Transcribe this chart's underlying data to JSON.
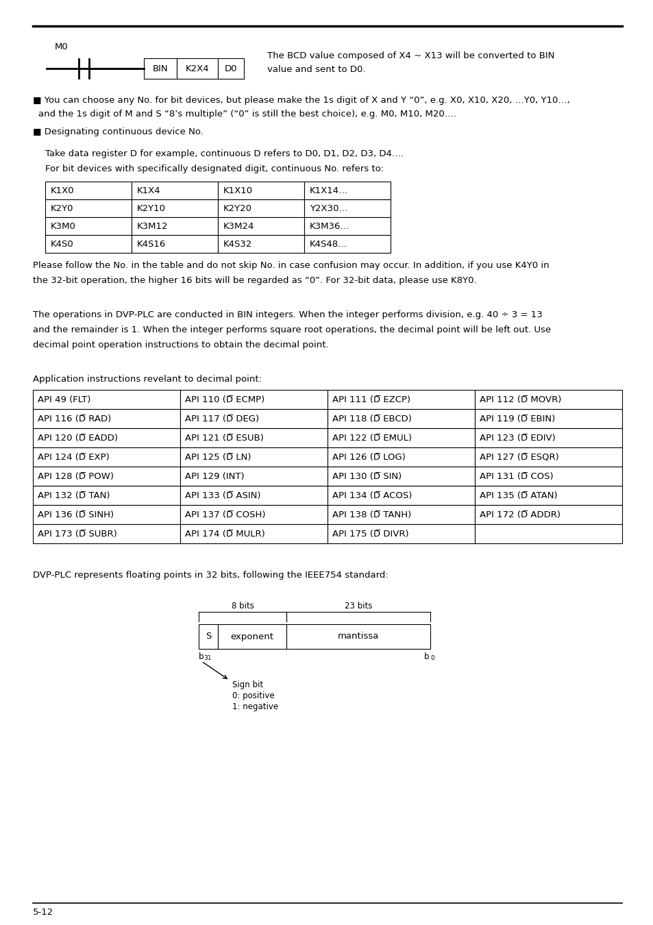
{
  "bg_color": "#ffffff",
  "page_label": "5-12",
  "ladder_m0_label": "M0",
  "ladder_desc1": "The BCD value composed of X4 ~ X13 will be converted to BIN",
  "ladder_desc2": "value and sent to D0.",
  "ladder_box_labels": [
    "BIN",
    "K2X4",
    "D0"
  ],
  "bullet1_line1": "■ You can choose any No. for bit devices, but please make the 1s digit of X and Y “0”, e.g. X0, X10, X20, …Y0, Y10…,",
  "bullet1_line2": "and the 1s digit of M and S “8’s multiple” (“0” is still the best choice), e.g. M0, M10, M20….",
  "bullet2": "■ Designating continuous device No.",
  "para1": "Take data register D for example, continuous D refers to D0, D1, D2, D3, D4….",
  "para2": "For bit devices with specifically designated digit, continuous No. refers to:",
  "table1": [
    [
      "K1X0",
      "K1X4",
      "K1X10",
      "K1X14…"
    ],
    [
      "K2Y0",
      "K2Y10",
      "K2Y20",
      "Y2X30…"
    ],
    [
      "K3M0",
      "K3M12",
      "K3M24",
      "K3M36…"
    ],
    [
      "K4S0",
      "K4S16",
      "K4S32",
      "K4S48…"
    ]
  ],
  "para3": "Please follow the No. in the table and do not skip No. in case confusion may occur. In addition, if you use K4Y0 in",
  "para4": "the 32-bit operation, the higher 16 bits will be regarded as “0”. For 32-bit data, please use K8Y0.",
  "para5": "The operations in DVP-PLC are conducted in BIN integers. When the integer performs division, e.g. 40 ÷ 3 = 13",
  "para6": "and the remainder is 1. When the integer performs square root operations, the decimal point will be left out. Use",
  "para7": "decimal point operation instructions to obtain the decimal point.",
  "app_label": "Application instructions revelant to decimal point:",
  "table2": [
    [
      "API 49 (FLT)",
      "API 110 (D̅ ECMP)",
      "API 111 (D̅ EZCP)",
      "API 112 (D̅ MOVR)"
    ],
    [
      "API 116 (D̅ RAD)",
      "API 117 (D̅ DEG)",
      "API 118 (D̅ EBCD)",
      "API 119 (D̅ EBIN)"
    ],
    [
      "API 120 (D̅ EADD)",
      "API 121 (D̅ ESUB)",
      "API 122 (D̅ EMUL)",
      "API 123 (D̅ EDIV)"
    ],
    [
      "API 124 (D̅ EXP)",
      "API 125 (D̅ LN)",
      "API 126 (D̅ LOG)",
      "API 127 (D̅ ESQR)"
    ],
    [
      "API 128 (D̅ POW)",
      "API 129 (INT)",
      "API 130 (D̅ SIN)",
      "API 131 (D̅ COS)"
    ],
    [
      "API 132 (D̅ TAN)",
      "API 133 (D̅ ASIN)",
      "API 134 (D̅ ACOS)",
      "API 135 (D̅ ATAN)"
    ],
    [
      "API 136 (D̅ SINH)",
      "API 137 (D̅ COSH)",
      "API 138 (D̅ TANH)",
      "API 172 (D̅ ADDR)"
    ],
    [
      "API 173 (D̅ SUBR)",
      "API 174 (D̅ MULR)",
      "API 175 (D̅ DIVR)",
      ""
    ]
  ],
  "para8": "DVP-PLC represents floating points in 32 bits, following the IEEE754 standard:",
  "float_s": "S",
  "float_exp": "exponent",
  "float_mant": "mantissa",
  "float_8bits": "8 bits",
  "float_23bits": "23 bits",
  "float_b31": "b",
  "float_b31_sub": "31",
  "float_b0": "b",
  "float_b0_sub": "0",
  "float_sign": "Sign bit",
  "float_pos": "0: positive",
  "float_neg": "1: negative",
  "lm_pts": 48,
  "rm_pts": 908,
  "fs": 10.5,
  "fs_small": 9.5
}
